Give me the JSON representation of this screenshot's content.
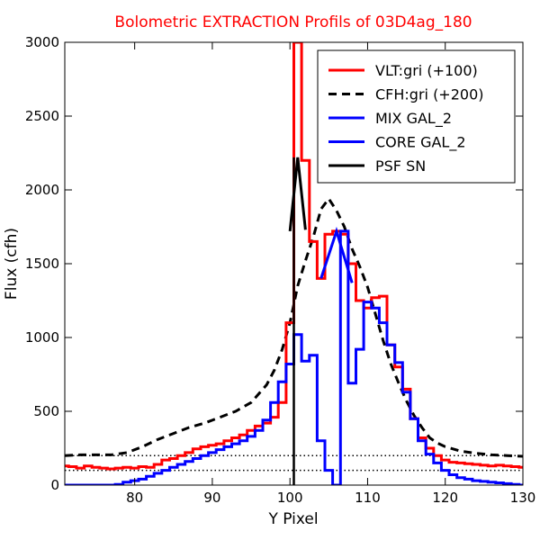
{
  "chart_data": {
    "type": "line",
    "title": "Bolometric EXTRACTION Profils of 03D4ag_180",
    "title_color": "#ff0000",
    "xlabel": "Y Pixel",
    "ylabel": "Flux (cfh)",
    "xlim": [
      71,
      130
    ],
    "ylim": [
      0,
      3000
    ],
    "xticks": [
      "80",
      "90",
      "100",
      "110",
      "120",
      "130"
    ],
    "yticks": [
      "0",
      "500",
      "1000",
      "1500",
      "2000",
      "2500",
      "3000"
    ],
    "grid": false,
    "legend_position": "top-right",
    "reference_lines": [
      {
        "y": 100,
        "style": "dotted",
        "color": "#000000"
      },
      {
        "y": 200,
        "style": "dotted",
        "color": "#000000"
      }
    ],
    "series": [
      {
        "name": "VLT:gri (+100)",
        "color": "#ff0000",
        "style": "steps",
        "x": [
          71,
          72,
          73,
          74,
          75,
          76,
          77,
          78,
          79,
          80,
          81,
          82,
          83,
          84,
          85,
          86,
          87,
          88,
          89,
          90,
          91,
          92,
          93,
          94,
          95,
          96,
          97,
          98,
          99,
          100,
          101,
          102,
          103,
          104,
          105,
          106,
          107,
          108,
          109,
          110,
          111,
          112,
          113,
          114,
          115,
          116,
          117,
          118,
          119,
          120,
          121,
          122,
          123,
          124,
          125,
          126,
          127,
          128,
          129,
          130
        ],
        "values": [
          130,
          125,
          115,
          130,
          120,
          115,
          110,
          115,
          120,
          115,
          125,
          120,
          140,
          170,
          180,
          200,
          220,
          245,
          260,
          270,
          280,
          300,
          320,
          340,
          370,
          400,
          420,
          460,
          560,
          1100,
          3000,
          2200,
          1650,
          1400,
          1700,
          1720,
          1700,
          1500,
          1250,
          1200,
          1270,
          1280,
          950,
          800,
          650,
          450,
          320,
          250,
          200,
          170,
          155,
          150,
          145,
          140,
          135,
          130,
          135,
          130,
          125,
          120
        ]
      },
      {
        "name": "CFH:gri (+200)",
        "color": "#000000",
        "style": "dashed",
        "x": [
          71,
          73,
          75,
          77,
          79,
          81,
          83,
          85,
          87,
          89,
          91,
          93,
          95,
          97,
          98,
          99,
          100,
          101,
          102,
          103,
          104,
          105,
          106,
          107,
          108,
          109,
          110,
          111,
          112,
          113,
          114,
          115,
          116,
          117,
          118,
          119,
          120,
          122,
          124,
          126,
          128,
          130
        ],
        "values": [
          200,
          205,
          205,
          205,
          220,
          260,
          310,
          350,
          390,
          420,
          460,
          500,
          560,
          680,
          780,
          920,
          1100,
          1350,
          1520,
          1680,
          1870,
          1940,
          1860,
          1750,
          1600,
          1480,
          1340,
          1160,
          980,
          820,
          690,
          570,
          470,
          390,
          320,
          285,
          260,
          230,
          215,
          205,
          200,
          195
        ]
      },
      {
        "name": "MIX GAL_2",
        "color": "#0000ff",
        "style": "line",
        "x": [
          104,
          106,
          108
        ],
        "values": [
          1400,
          1720,
          1370
        ]
      },
      {
        "name": "CORE GAL_2",
        "color": "#0000ff",
        "style": "steps",
        "x": [
          71,
          72,
          73,
          74,
          75,
          76,
          77,
          78,
          79,
          80,
          81,
          82,
          83,
          84,
          85,
          86,
          87,
          88,
          89,
          90,
          91,
          92,
          93,
          94,
          95,
          96,
          97,
          98,
          99,
          100,
          101,
          102,
          103,
          104,
          105,
          106,
          107,
          108,
          109,
          110,
          111,
          112,
          113,
          114,
          115,
          116,
          117,
          118,
          119,
          120,
          121,
          122,
          123,
          124,
          125,
          126,
          127,
          128,
          129,
          130
        ],
        "values": [
          0,
          0,
          0,
          0,
          0,
          0,
          0,
          5,
          20,
          30,
          40,
          60,
          80,
          100,
          120,
          140,
          160,
          180,
          200,
          220,
          240,
          260,
          280,
          300,
          330,
          370,
          440,
          560,
          700,
          820,
          1020,
          840,
          880,
          300,
          100,
          0,
          1720,
          690,
          920,
          1240,
          1200,
          1100,
          950,
          830,
          630,
          450,
          300,
          210,
          150,
          100,
          70,
          50,
          40,
          30,
          25,
          20,
          15,
          10,
          5,
          0
        ]
      },
      {
        "name": "PSF SN",
        "color": "#000000",
        "style": "line",
        "x": [
          100,
          101,
          102
        ],
        "values": [
          1720,
          2220,
          1730
        ]
      }
    ]
  }
}
